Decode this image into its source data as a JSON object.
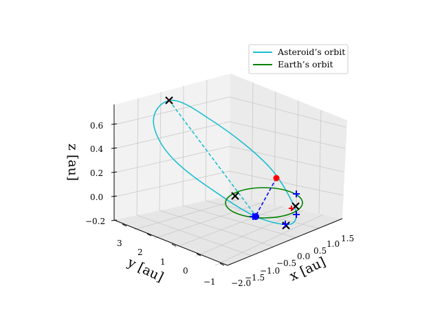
{
  "chart_data": {
    "type": "line3d",
    "title": "",
    "legend": {
      "placement": "top-right",
      "entries": [
        {
          "label": "Asteroid’s orbit",
          "color": "#17becf"
        },
        {
          "label": "Earth’s orbit",
          "color": "#008000"
        }
      ]
    },
    "axes": {
      "x": {
        "label": "x [au]",
        "range": [
          -2.0,
          1.5
        ],
        "ticks": [
          "−2.0",
          "−1.5",
          "−1.0",
          "−0.5",
          "0.0",
          "0.5",
          "1.0",
          "1.5"
        ]
      },
      "y": {
        "label": "y [au]",
        "range": [
          -1,
          3
        ],
        "ticks": [
          "−1",
          "0",
          "1",
          "2",
          "3"
        ]
      },
      "z": {
        "label": "z [au]",
        "range": [
          -0.2,
          0.6
        ],
        "ticks": [
          "−0.2",
          "0.0",
          "0.2",
          "0.4",
          "0.6"
        ]
      }
    },
    "grid": true,
    "series": [
      {
        "name": "Asteroid’s orbit",
        "kind": "ellipse-3d",
        "color": "#17becf",
        "aphelion_z": 0.75
      },
      {
        "name": "Earth’s orbit",
        "kind": "circle",
        "color": "#008000",
        "radius": 1.0,
        "z": 0.0
      }
    ],
    "lines": [
      {
        "kind": "dashed",
        "color": "#17becf",
        "from": "aphelion",
        "to": "perihelion"
      },
      {
        "kind": "dashed",
        "color": "#0000ff",
        "from": "asteroid",
        "to": "earth"
      }
    ],
    "markers": [
      {
        "kind": "dot",
        "color": "#ff0000",
        "label": "asteroid position"
      },
      {
        "kind": "dot",
        "color": "#0000ff",
        "label": "earth position"
      },
      {
        "kind": "cross",
        "color": "#000000",
        "count": 4
      },
      {
        "kind": "plus",
        "color": "#0000ff",
        "count": 4
      },
      {
        "kind": "plus",
        "color": "#ff0000",
        "count": 1
      }
    ]
  }
}
